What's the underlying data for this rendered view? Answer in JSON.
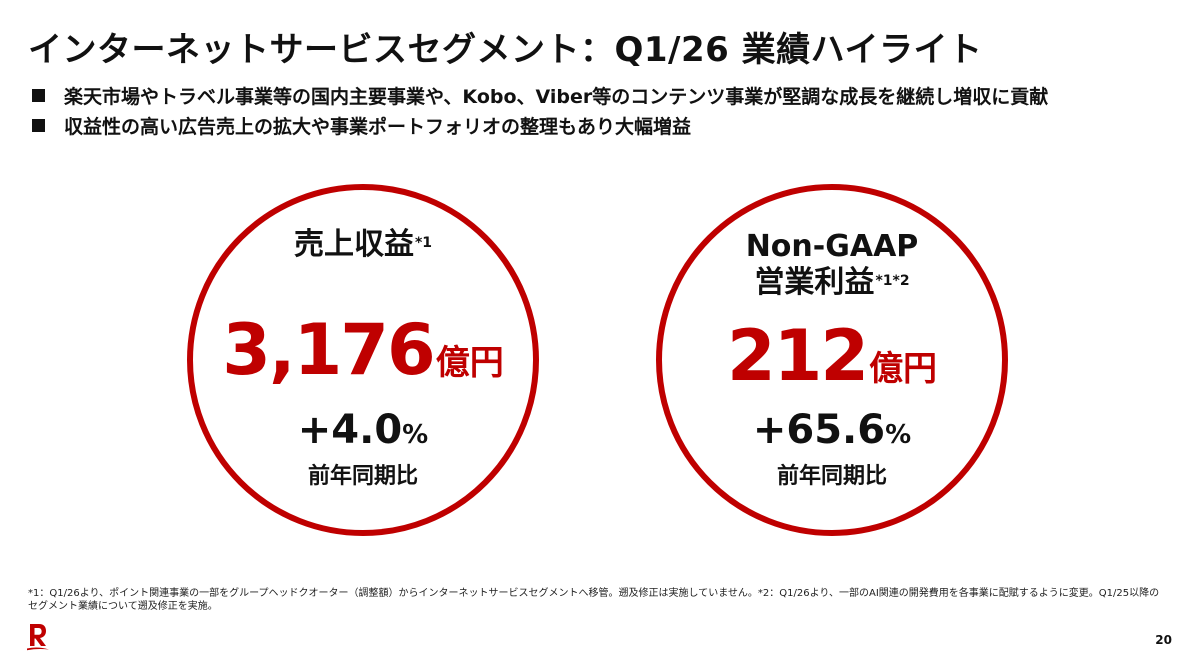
{
  "slide": {
    "title": "インターネットサービスセグメント：Q1/26 業績ハイライト",
    "bullets": [
      "楽天市場やトラベル事業等の国内主要事業や、Kobo、Viber等のコンテンツ事業が堅調な成長を継続し増収に貢献",
      "収益性の高い広告売上の拡大や事業ポートフォリオの整理もあり大幅増益"
    ]
  },
  "metrics": {
    "revenue": {
      "label": "売上収益",
      "note": "*1",
      "value": "3,176",
      "unit": "億円",
      "change": "+4.0",
      "change_unit": "%",
      "change_label": "前年同期比"
    },
    "profit": {
      "label_line1": "Non-GAAP",
      "label_line2": "営業利益",
      "note": "*1*2",
      "value": "212",
      "unit": "億円",
      "change": "+65.6",
      "change_unit": "%",
      "change_label": "前年同期比"
    }
  },
  "footnotes": {
    "note1": "*1：Q1/26より、ポイント関連事業の一部をグループヘッドクオーター（調整額）からインターネットサービスセグメントへ移管。遡及修正は実施していません。",
    "note2": "*2：Q1/26より、一部のAI関連の開発費用を各事業に配賦するように変更。Q1/25以降のセグメント業績について遡及修正を実施。"
  },
  "page_number": "20",
  "colors": {
    "accent": "#bf0000",
    "text": "#111111"
  },
  "icons": {
    "logo": "rakuten-r-logo"
  }
}
